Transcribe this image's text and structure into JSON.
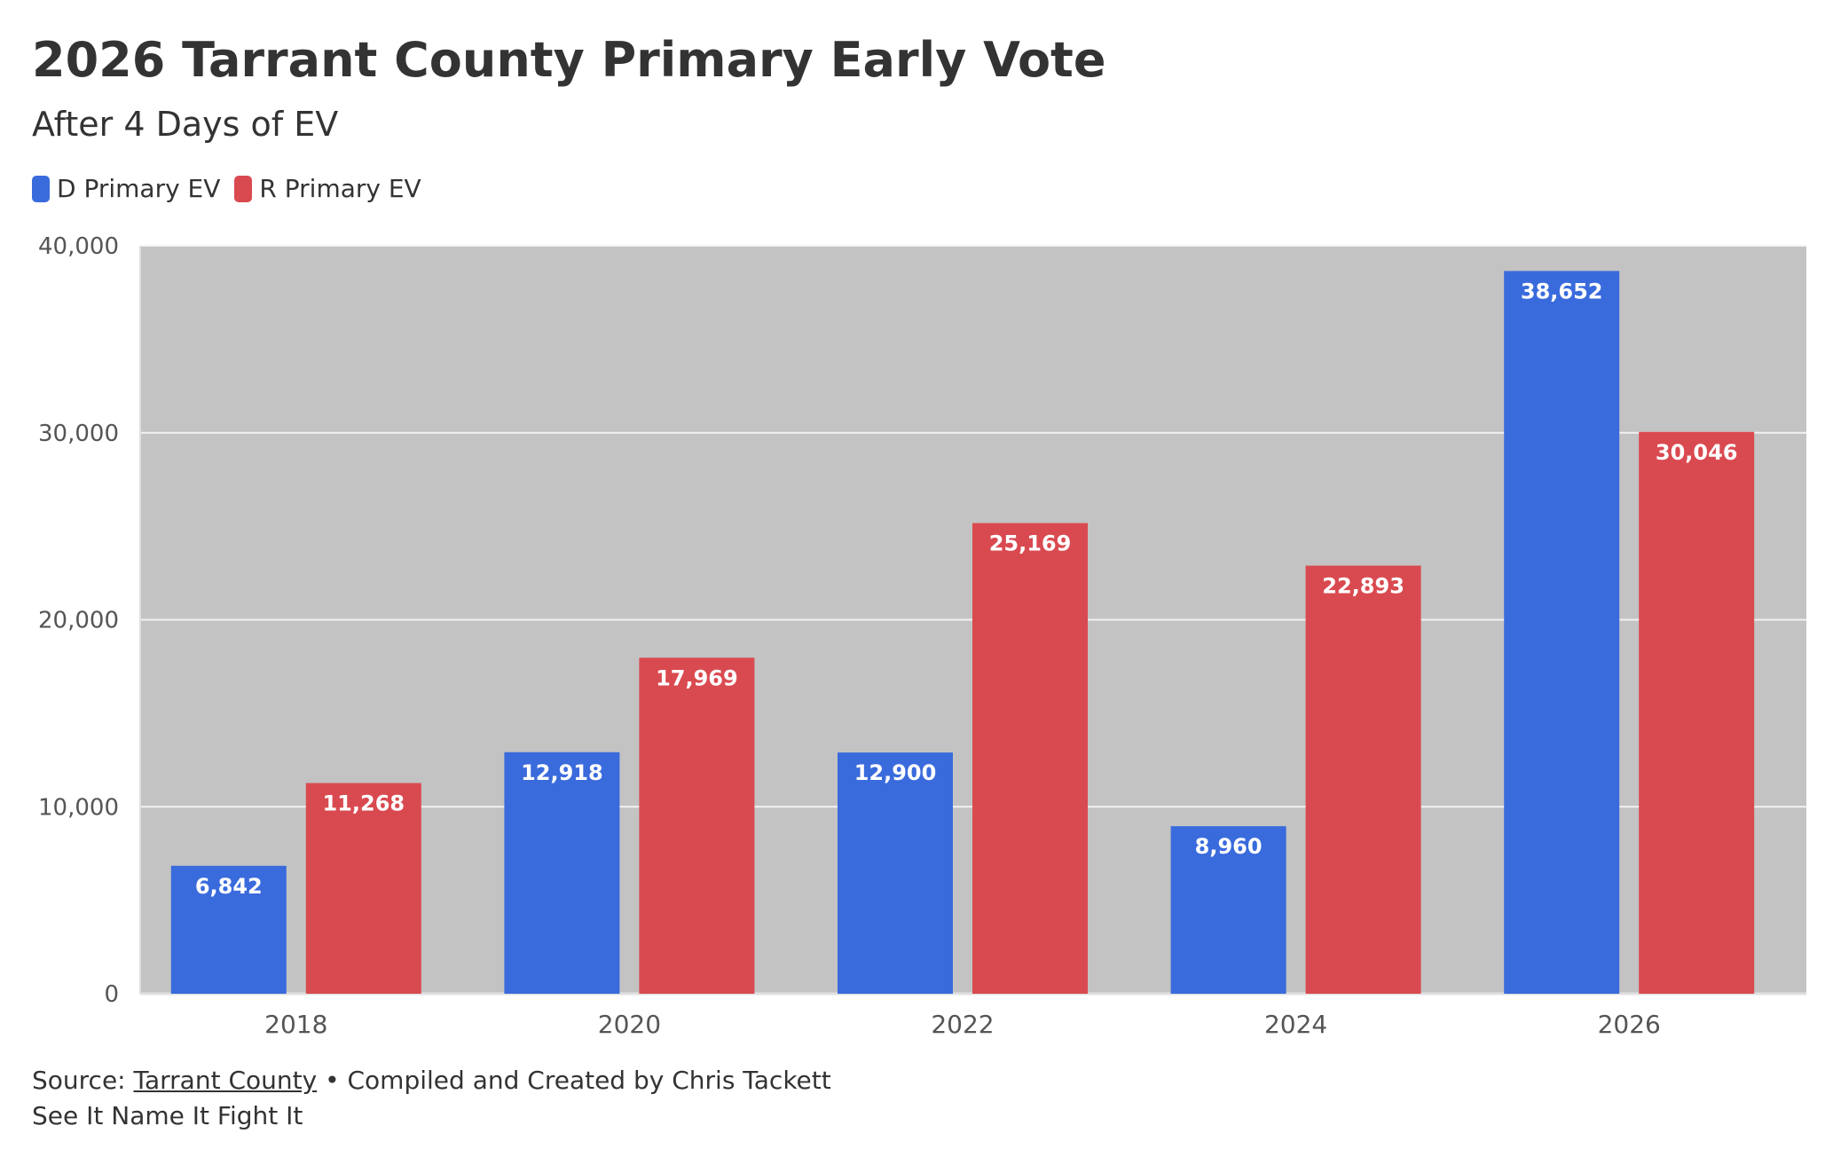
{
  "title": "2026 Tarrant County Primary Early Vote",
  "subtitle": "After 4 Days of EV",
  "legend": [
    {
      "label": "D Primary EV",
      "color": "#3a6bdc"
    },
    {
      "label": "R Primary EV",
      "color": "#d94a50"
    }
  ],
  "chart_data": {
    "type": "bar",
    "categories": [
      "2018",
      "2020",
      "2022",
      "2024",
      "2026"
    ],
    "series": [
      {
        "name": "D Primary EV",
        "color": "#3a6bdc",
        "values": [
          6842,
          12918,
          12900,
          8960,
          38652
        ]
      },
      {
        "name": "R Primary EV",
        "color": "#d94a50",
        "values": [
          11268,
          17969,
          25169,
          22893,
          30046
        ]
      }
    ],
    "ylim": [
      0,
      40000
    ],
    "yticks": [
      0,
      10000,
      20000,
      30000,
      40000
    ],
    "ytick_labels": [
      "0",
      "10,000",
      "20,000",
      "30,000",
      "40,000"
    ],
    "value_labels": [
      [
        "6,842",
        "12,918",
        "12,900",
        "8,960",
        "38,652"
      ],
      [
        "11,268",
        "17,969",
        "25,169",
        "22,893",
        "30,046"
      ]
    ],
    "plot_background": "#c3c3c3",
    "grid": true
  },
  "footer": {
    "source_prefix": "Source: ",
    "source_link": "Tarrant County",
    "credit": " • Compiled and Created by Chris Tackett",
    "tagline": "See It Name It Fight It"
  }
}
